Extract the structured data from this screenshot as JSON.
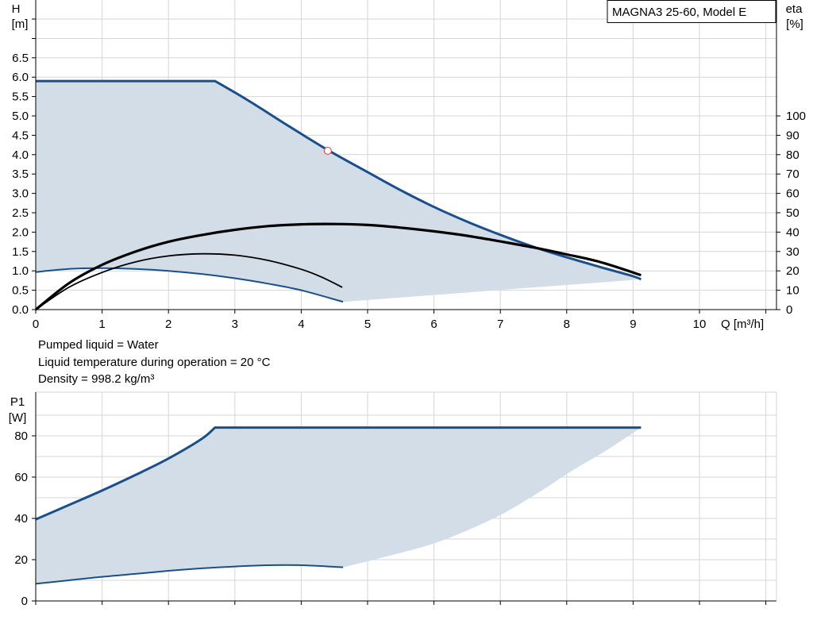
{
  "chart_data": [
    {
      "type": "line",
      "model": "MAGNA3 25-60, Model E",
      "xlabel": "Q [m³/h]",
      "ylabel_left": "H",
      "ylabel_left_unit": "[m]",
      "ylabel_right": "eta",
      "ylabel_right_unit": "[%]",
      "xlim": [
        0,
        11
      ],
      "ylim_left": [
        0,
        6.5
      ],
      "ylim_right": [
        0,
        100
      ],
      "x_ticks": [
        0,
        1,
        2,
        3,
        4,
        5,
        6,
        7,
        8,
        9,
        10
      ],
      "x_tick_labels": [
        "0",
        "1",
        "2",
        "3",
        "4",
        "5",
        "6",
        "7",
        "8",
        "9",
        "10"
      ],
      "y_left_ticks": [
        0.0,
        0.5,
        1.0,
        1.5,
        2.0,
        2.5,
        3.0,
        3.5,
        4.0,
        4.5,
        5.0,
        5.5,
        6.0,
        6.5
      ],
      "y_left_tick_labels": [
        "0.0",
        "0.5",
        "1.0",
        "1.5",
        "2.0",
        "2.5",
        "3.0",
        "3.5",
        "4.0",
        "4.5",
        "5.0",
        "5.5",
        "6.0",
        "6.5"
      ],
      "y_right_ticks": [
        0,
        10,
        20,
        30,
        40,
        50,
        60,
        70,
        80,
        90,
        100
      ],
      "y_right_tick_labels": [
        "0",
        "10",
        "20",
        "30",
        "40",
        "50",
        "60",
        "70",
        "80",
        "90",
        "100"
      ],
      "grid": true,
      "series": [
        {
          "role": "max_head",
          "axis": "left",
          "color": "#1b4f8a",
          "x": [
            0,
            2.7,
            3.2,
            3.8,
            4.4,
            5.0,
            5.5,
            6.0,
            6.5,
            7.0,
            7.5,
            8.0,
            8.5,
            9.0,
            9.12
          ],
          "y": [
            5.9,
            5.9,
            5.4,
            4.75,
            4.12,
            3.55,
            3.08,
            2.65,
            2.27,
            1.93,
            1.62,
            1.35,
            1.1,
            0.86,
            0.78
          ]
        },
        {
          "role": "min_head",
          "axis": "left",
          "color": "#1b4f8a",
          "x": [
            0,
            0.5,
            1.0,
            1.5,
            2.0,
            2.5,
            3.0,
            3.5,
            4.0,
            4.63
          ],
          "y": [
            0.97,
            1.05,
            1.07,
            1.05,
            1.0,
            0.92,
            0.81,
            0.67,
            0.5,
            0.2
          ]
        },
        {
          "role": "max_efficiency",
          "axis": "right",
          "x": [
            0,
            0.5,
            1.0,
            1.5,
            2.0,
            2.5,
            3.0,
            3.5,
            4.0,
            4.5,
            5.0,
            5.5,
            6.0,
            6.5,
            7.0,
            7.5,
            8.0,
            8.5,
            9.12
          ],
          "y": [
            0,
            13.6,
            23.1,
            29.9,
            35.0,
            38.5,
            41.2,
            43.1,
            44.0,
            44.2,
            43.7,
            42.3,
            40.4,
            38.1,
            35.2,
            32.1,
            28.5,
            24.6,
            17.8
          ]
        },
        {
          "role": "min_efficiency",
          "axis": "right",
          "x": [
            0,
            0.5,
            1.0,
            1.5,
            2.0,
            2.5,
            3.0,
            3.5,
            4.0,
            4.3,
            4.62
          ],
          "y": [
            0,
            11.5,
            19.2,
            24.6,
            27.7,
            28.8,
            28.1,
            25.4,
            20.8,
            16.9,
            11.5
          ]
        }
      ],
      "envelope_lower_edge": {
        "x": [
          4.63,
          9.12
        ],
        "y": [
          0.2,
          0.78
        ]
      },
      "operating_point": {
        "x": 4.4,
        "y": 4.1
      }
    },
    {
      "type": "line",
      "ylabel": "P1",
      "ylabel_unit": "[W]",
      "xlim": [
        0,
        11
      ],
      "ylim": [
        0,
        90
      ],
      "y_ticks": [
        0,
        20,
        40,
        60,
        80
      ],
      "y_tick_labels": [
        "0",
        "20",
        "40",
        "60",
        "80"
      ],
      "grid": true,
      "series": [
        {
          "role": "max_power",
          "color": "#1b4f8a",
          "x": [
            0,
            0.5,
            1.0,
            1.5,
            2.0,
            2.5,
            2.7,
            9.12
          ],
          "y": [
            39.5,
            46.5,
            53.5,
            61.0,
            69.0,
            78.5,
            84,
            84
          ]
        },
        {
          "role": "min_power",
          "color": "#1b4f8a",
          "x": [
            0,
            0.5,
            1.0,
            1.5,
            2.0,
            2.5,
            3.0,
            3.5,
            4.0,
            4.63
          ],
          "y": [
            8.3,
            10.0,
            11.7,
            13.1,
            14.6,
            15.8,
            16.7,
            17.3,
            17.3,
            16.3
          ]
        }
      ],
      "envelope_lower_edge": {
        "x": [
          4.63,
          5.4,
          6.1,
          6.9,
          7.5,
          8.1,
          8.6,
          9.12
        ],
        "y": [
          16.3,
          22.5,
          29.0,
          40.0,
          51.0,
          63.5,
          73.0,
          84
        ]
      }
    }
  ],
  "legend_box": {
    "label": "MAGNA3 25-60, Model E"
  },
  "info": {
    "pumped_liquid": "Pumped liquid = Water",
    "liquid_temperature": "Liquid temperature during operation = 20 °C",
    "density": "Density = 998.2 kg/m³"
  }
}
